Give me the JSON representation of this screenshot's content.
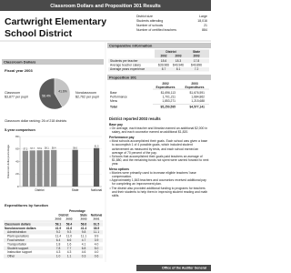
{
  "header": {
    "banner": "Classroom Dollars and Proposition 301 Results",
    "title_lines": [
      "Cartwright Elementary",
      "School District"
    ]
  },
  "district_info": {
    "rows": [
      {
        "label": "District size",
        "value": "Large"
      },
      {
        "label": "Students attending",
        "value": "18,016"
      },
      {
        "label": "Number of schools",
        "value": "21"
      },
      {
        "label": "Number of certified teachers",
        "value": "884"
      }
    ]
  },
  "classroom_dollars": {
    "heading": "Classroom Dollars",
    "fiscal_year": "Fiscal year 2003",
    "ranking": "Classroom dollar ranking: 26 of 218 districts",
    "comparison_heading": "5-year comparison"
  },
  "chart_data": [
    {
      "type": "pie",
      "categories": [
        "Classroom",
        "Nonclassroom"
      ],
      "sublabels": [
        "$3,877 per pupil",
        "$2,762 per pupil"
      ],
      "values": [
        58.4,
        41.6
      ],
      "value_labels": [
        "58.4%",
        "41.6%"
      ],
      "colors": [
        "#5a5a5a",
        "#c4c4c4"
      ]
    },
    {
      "type": "bar",
      "y_label": "Classroom dollar percentage",
      "groups": [
        {
          "name": "District",
          "values": [
            57.2,
            57.7,
            57.9,
            58.1,
            58.4
          ]
        },
        {
          "name": "State",
          "values": [
            58.6
          ]
        },
        {
          "name": "National",
          "values": [
            61.5
          ]
        }
      ],
      "colors": [
        "#8c8c8c",
        "#5a5a5a",
        "#5a5a5a"
      ],
      "ylim": [
        0,
        80
      ],
      "yticks": [
        0,
        20,
        40,
        60,
        80
      ],
      "grid": true
    }
  ],
  "expenditures": {
    "heading": "Expenditures by function",
    "group_header": "Percentage",
    "columns": [
      "District",
      "State",
      "National"
    ],
    "years": [
      "2002",
      "2003",
      "2003",
      "2001"
    ],
    "rows": [
      {
        "label": "Classroom dollars",
        "values": [
          "58.1",
          "58.4",
          "58.6",
          "61.5"
        ],
        "bold": true
      },
      {
        "label": "Nonclassroom dollars",
        "values": [
          "41.9",
          "41.6",
          "41.4",
          "38.5"
        ],
        "bold": true
      },
      {
        "label": "Administration",
        "values": [
          "9.2",
          "9.3",
          "9.8",
          "11.1"
        ]
      },
      {
        "label": "Plant operations",
        "values": [
          "11.4",
          "11.0",
          "11.1",
          "9.9"
        ]
      },
      {
        "label": "Food service",
        "values": [
          "6.4",
          "6.6",
          "4.7",
          "3.9"
        ]
      },
      {
        "label": "Transportation",
        "values": [
          "1.8",
          "1.6",
          "4.1",
          "4.0"
        ]
      },
      {
        "label": "Student support",
        "values": [
          "7.8",
          "7.7",
          "6.8",
          "5.0"
        ]
      },
      {
        "label": "Instruction support",
        "values": [
          "4.3",
          "4.3",
          "4.6",
          "4.0"
        ]
      },
      {
        "label": "Other",
        "values": [
          "1.0",
          "1.1",
          "0.3",
          "0.6"
        ]
      }
    ]
  },
  "comparative": {
    "heading": "Comparative information",
    "columns": [
      "District",
      "State"
    ],
    "years": [
      "2002",
      "2003",
      "2003"
    ],
    "rows": [
      {
        "label": "Students per teacher",
        "values": [
          "18.6",
          "18.3",
          "17.8"
        ]
      },
      {
        "label": "Average teacher salary",
        "values": [
          "$39,966",
          "$40,946",
          "$40,896"
        ]
      },
      {
        "label": "Average years experience",
        "values": [
          "8.7",
          "8.1",
          "7.2"
        ]
      }
    ]
  },
  "prop301": {
    "heading": "Proposition 301",
    "columns": [
      [
        "2002",
        "Expenditures"
      ],
      [
        "2003",
        "Expenditures"
      ]
    ],
    "rows": [
      {
        "label": "Base",
        "values": [
          "$1,696,113",
          "$1,676,591"
        ]
      },
      {
        "label": "Performance",
        "values": [
          "1,701,211",
          "1,684,862"
        ]
      },
      {
        "label": "Menu",
        "values": [
          "1,853,271",
          "1,215,688"
        ]
      },
      {
        "label": "Total",
        "values": [
          "$5,250,595",
          "$4,577,141"
        ],
        "bold": true
      }
    ]
  },
  "results": {
    "heading": "District reported 2003 results",
    "sections": [
      {
        "title": "Base pay",
        "bullets": [
          "On average, each teacher and librarian earned an additional $2,000 in salary, and each counselor earned an additional $1,820."
        ]
      },
      {
        "title": "Performance pay",
        "bullets": [
          "Most schools accomplished their goals. Each school was given a base to accomplish 1 of 4 possible goals, which included student achievement as measured by tests, and each school earned an average of 70 percent of the pay.",
          "Schools that accomplished their goals paid teachers an average of $1,880, and the remaining funds not spent were carried forward to next year."
        ]
      },
      {
        "title": "Menu options",
        "bullets": [
          "Monies were primarily used to increase eligible teachers' base compensation.",
          "Approximately 1,843 teachers and counselors received additional pay for completing an improvement plan.",
          "The district also provided additional funding to programs for teachers and their students to help them in improving student reading and math skills."
        ]
      }
    ]
  },
  "footer": {
    "office": "Office of the Auditor General"
  }
}
